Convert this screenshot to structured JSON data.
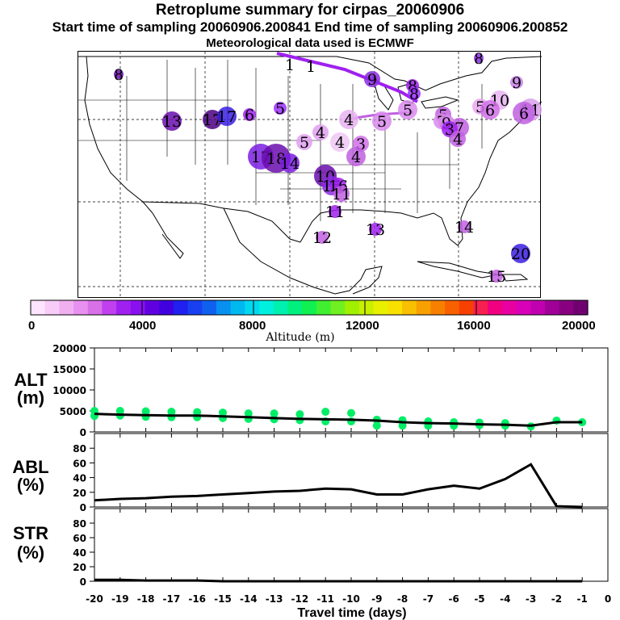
{
  "header": {
    "title": "Retroplume summary for cirpas_20060906",
    "sampling": "Start time of sampling 20060906.200841     End time of sampling 20060906.200852",
    "met": "Meteorological data used is ECMWF"
  },
  "map": {
    "plumes": [
      {
        "day": "1",
        "color": "#a020f0"
      },
      {
        "day": "1",
        "color": "#a020f0"
      },
      {
        "day": "9",
        "color": "#8a2be2"
      },
      {
        "day": "8",
        "color": "#a020f0"
      },
      {
        "day": "8",
        "color": "#9b30ff"
      },
      {
        "day": "10",
        "color": "#e6b3f0"
      },
      {
        "day": "9",
        "color": "#c880e8"
      },
      {
        "day": "11",
        "color": "#d9a0ec"
      },
      {
        "day": "6",
        "color": "#c060e0"
      },
      {
        "day": "5",
        "color": "#e8a8f0"
      },
      {
        "day": "6",
        "color": "#d070e8"
      },
      {
        "day": "7",
        "color": "#c060e0"
      },
      {
        "day": "5",
        "color": "#d889ec"
      },
      {
        "day": "5",
        "color": "#c060e0"
      },
      {
        "day": "5",
        "color": "#d889ec"
      },
      {
        "day": "4",
        "color": "#e6b3f0"
      },
      {
        "day": "4",
        "color": "#e0a0f0"
      },
      {
        "day": "4",
        "color": "#f0c8f4"
      },
      {
        "day": "3",
        "color": "#d070e8"
      },
      {
        "day": "5",
        "color": "#e0a0f0"
      },
      {
        "day": "4",
        "color": "#c060e0"
      },
      {
        "day": "5",
        "color": "#9b30ff"
      },
      {
        "day": "17",
        "color": "#7b1fe0"
      },
      {
        "day": "18",
        "color": "#6a0dad"
      },
      {
        "day": "14",
        "color": "#7b1fe0"
      },
      {
        "day": "13",
        "color": "#6a0dad"
      },
      {
        "day": "17",
        "color": "#4b0082"
      },
      {
        "day": "17",
        "color": "#3a1fe0"
      },
      {
        "day": "6",
        "color": "#a020f0"
      },
      {
        "day": "10",
        "color": "#6a0dad"
      },
      {
        "day": "15",
        "color": "#8a2be2"
      },
      {
        "day": "16",
        "color": "#a020f0"
      },
      {
        "day": "11",
        "color": "#c060e0"
      },
      {
        "day": "11",
        "color": "#a020f0"
      },
      {
        "day": "12",
        "color": "#c060e0"
      },
      {
        "day": "13",
        "color": "#a020f0"
      },
      {
        "day": "14",
        "color": "#c060e0"
      },
      {
        "day": "20",
        "color": "#3a1fe0"
      },
      {
        "day": "15",
        "color": "#c060e0"
      },
      {
        "day": "8",
        "color": "#6a0dad"
      },
      {
        "day": "8",
        "color": "#8a2be2"
      },
      {
        "day": "7",
        "color": "#d889ec"
      },
      {
        "day": "9",
        "color": "#d889ec"
      },
      {
        "day": "3",
        "color": "#a020f0"
      },
      {
        "day": "4",
        "color": "#c060e0"
      }
    ]
  },
  "colorbar": {
    "title": "Altitude (m)",
    "ticks": [
      "0",
      "4000",
      "8000",
      "12000",
      "16000",
      "20000"
    ],
    "colors": [
      "#ffe4ff",
      "#f8ccf8",
      "#f0b0f0",
      "#e890f0",
      "#d870e8",
      "#c040f0",
      "#a020f0",
      "#8a10f0",
      "#6000e0",
      "#4000e0",
      "#2020f0",
      "#1840f0",
      "#1060f0",
      "#0890f0",
      "#00b8f0",
      "#00d8f0",
      "#00f0e0",
      "#00f0b0",
      "#00f080",
      "#10f050",
      "#40f030",
      "#70f020",
      "#a0f000",
      "#c8f000",
      "#e8f000",
      "#f8e000",
      "#f8c000",
      "#f8a000",
      "#f88000",
      "#f86000",
      "#f84000",
      "#f82050",
      "#f00080",
      "#e800a0",
      "#d800b8",
      "#c000b0",
      "#a00098",
      "#880080",
      "#700070"
    ]
  },
  "panels": {
    "alt": {
      "label1": "ALT",
      "label2": "(m)",
      "yticks": [
        "0",
        "5000",
        "10000",
        "15000",
        "20000"
      ]
    },
    "abl": {
      "label1": "ABL",
      "label2": "(%)",
      "yticks": [
        "0",
        "20",
        "40",
        "60",
        "80"
      ]
    },
    "str": {
      "label1": "STR",
      "label2": "(%)",
      "yticks": [
        "0",
        "20",
        "40",
        "60",
        "80"
      ]
    },
    "xticks": [
      "-20",
      "-19",
      "-18",
      "-17",
      "-16",
      "-15",
      "-14",
      "-13",
      "-12",
      "-11",
      "-10",
      "-9",
      "-8",
      "-7",
      "-6",
      "-5",
      "-4",
      "-3",
      "-2",
      "-1",
      "0"
    ],
    "xlabel": "Travel time (days)"
  },
  "chart_data": [
    {
      "type": "line",
      "title": "ALT (m)",
      "xlabel": "Travel time (days)",
      "ylabel": "ALT (m)",
      "xlim": [
        -20,
        0
      ],
      "ylim": [
        0,
        20000
      ],
      "series": [
        {
          "name": "mean altitude",
          "color": "#000000",
          "x": [
            -20,
            -19,
            -18,
            -17,
            -16,
            -15,
            -14,
            -13,
            -12,
            -11,
            -10,
            -9,
            -8,
            -7,
            -6,
            -5,
            -4,
            -3,
            -2,
            -1
          ],
          "values": [
            4300,
            4100,
            4000,
            3900,
            3900,
            3700,
            3500,
            3300,
            3100,
            3000,
            2900,
            2700,
            2300,
            2100,
            2000,
            1800,
            1700,
            1500,
            2300,
            2300
          ]
        },
        {
          "name": "particle altitudes",
          "color": "#00ee66",
          "kind": "scatter",
          "x": [
            -20,
            -20,
            -19,
            -19,
            -18,
            -18,
            -17,
            -17,
            -16,
            -16,
            -15,
            -15,
            -14,
            -14,
            -13,
            -13,
            -12,
            -12,
            -11,
            -11,
            -10,
            -10,
            -9,
            -9,
            -8,
            -8,
            -7,
            -7,
            -6,
            -6,
            -5,
            -5,
            -4,
            -4,
            -3,
            -2,
            -1
          ],
          "values": [
            5000,
            3800,
            5000,
            3900,
            4900,
            3600,
            4800,
            3500,
            4700,
            3500,
            4600,
            3300,
            4400,
            3100,
            4400,
            3000,
            4200,
            2800,
            4800,
            2500,
            4500,
            2500,
            2900,
            1500,
            2800,
            1500,
            2500,
            1500,
            2300,
            1500,
            2200,
            1600,
            2100,
            1500,
            1300,
            2700,
            2300
          ]
        }
      ]
    },
    {
      "type": "line",
      "title": "ABL (%)",
      "xlabel": "Travel time (days)",
      "ylabel": "ABL (%)",
      "xlim": [
        -20,
        0
      ],
      "ylim": [
        0,
        100
      ],
      "series": [
        {
          "name": "ABL",
          "color": "#000000",
          "x": [
            -20,
            -19,
            -18,
            -17,
            -16,
            -15,
            -14,
            -13,
            -12,
            -11,
            -10,
            -9,
            -8,
            -7,
            -6,
            -5,
            -4,
            -3,
            -2,
            -1
          ],
          "values": [
            9,
            11,
            12,
            14,
            15,
            17,
            19,
            21,
            22,
            25,
            24,
            17,
            17,
            24,
            29,
            25,
            38,
            58,
            1,
            0
          ]
        }
      ]
    },
    {
      "type": "line",
      "title": "STR (%)",
      "xlabel": "Travel time (days)",
      "ylabel": "STR (%)",
      "xlim": [
        -20,
        0
      ],
      "ylim": [
        0,
        100
      ],
      "series": [
        {
          "name": "STR",
          "color": "#000000",
          "x": [
            -20,
            -19,
            -18,
            -17,
            -16,
            -15,
            -14,
            -13,
            -12,
            -11,
            -10,
            -9,
            -8,
            -7,
            -6,
            -5,
            -4,
            -3,
            -2,
            -1
          ],
          "values": [
            2,
            2,
            1,
            1,
            1,
            0,
            0,
            0,
            0,
            0,
            0,
            0,
            0,
            0,
            0,
            0,
            0,
            0,
            0,
            0
          ]
        }
      ]
    }
  ]
}
